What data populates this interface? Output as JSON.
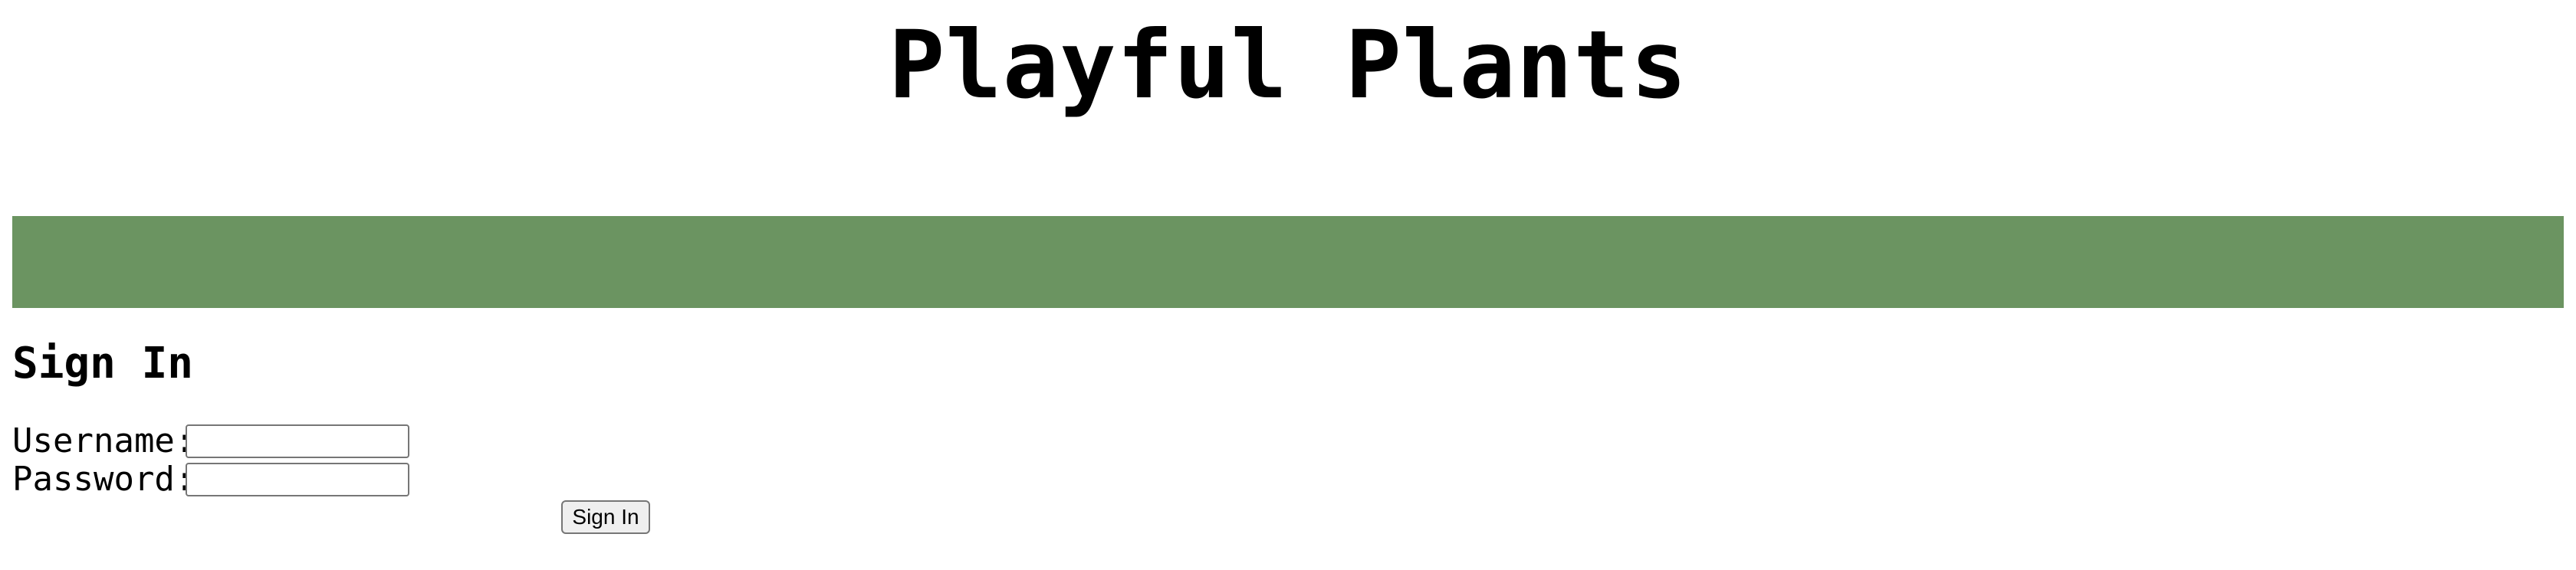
{
  "header": {
    "title": "Playful Plants"
  },
  "nav": {
    "color": "#6b9461"
  },
  "signin": {
    "heading": "Sign In",
    "username_label": "Username:",
    "username_value": "",
    "password_label": "Password:",
    "password_value": "",
    "submit_label": "Sign In"
  }
}
